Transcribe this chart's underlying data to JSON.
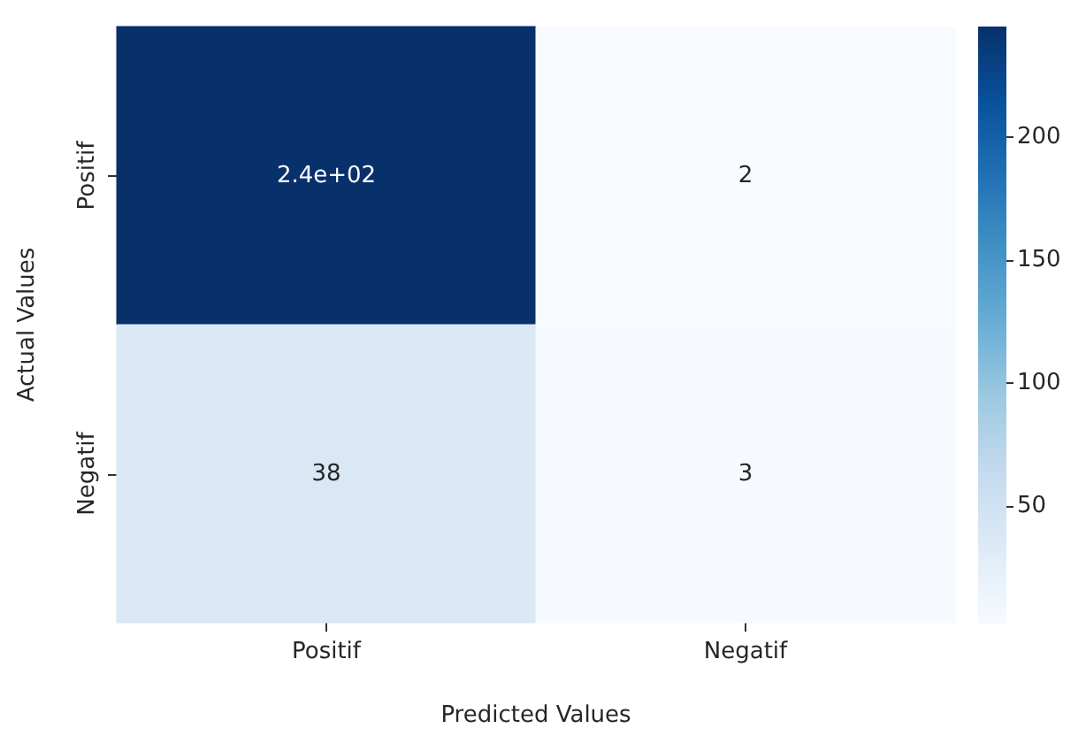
{
  "chart_data": {
    "type": "heatmap",
    "xlabel": "Predicted Values",
    "ylabel": "Actual Values",
    "categories": [
      "Positif",
      "Negatif"
    ],
    "y_categories": [
      "Positif",
      "Negatif"
    ],
    "cells": [
      [
        245,
        2
      ],
      [
        38,
        3
      ]
    ],
    "cell_labels": [
      [
        "2.4e+02",
        "2"
      ],
      [
        "38",
        "3"
      ]
    ],
    "clim": [
      2,
      245
    ],
    "cticks": [
      50,
      100,
      150,
      200
    ]
  }
}
